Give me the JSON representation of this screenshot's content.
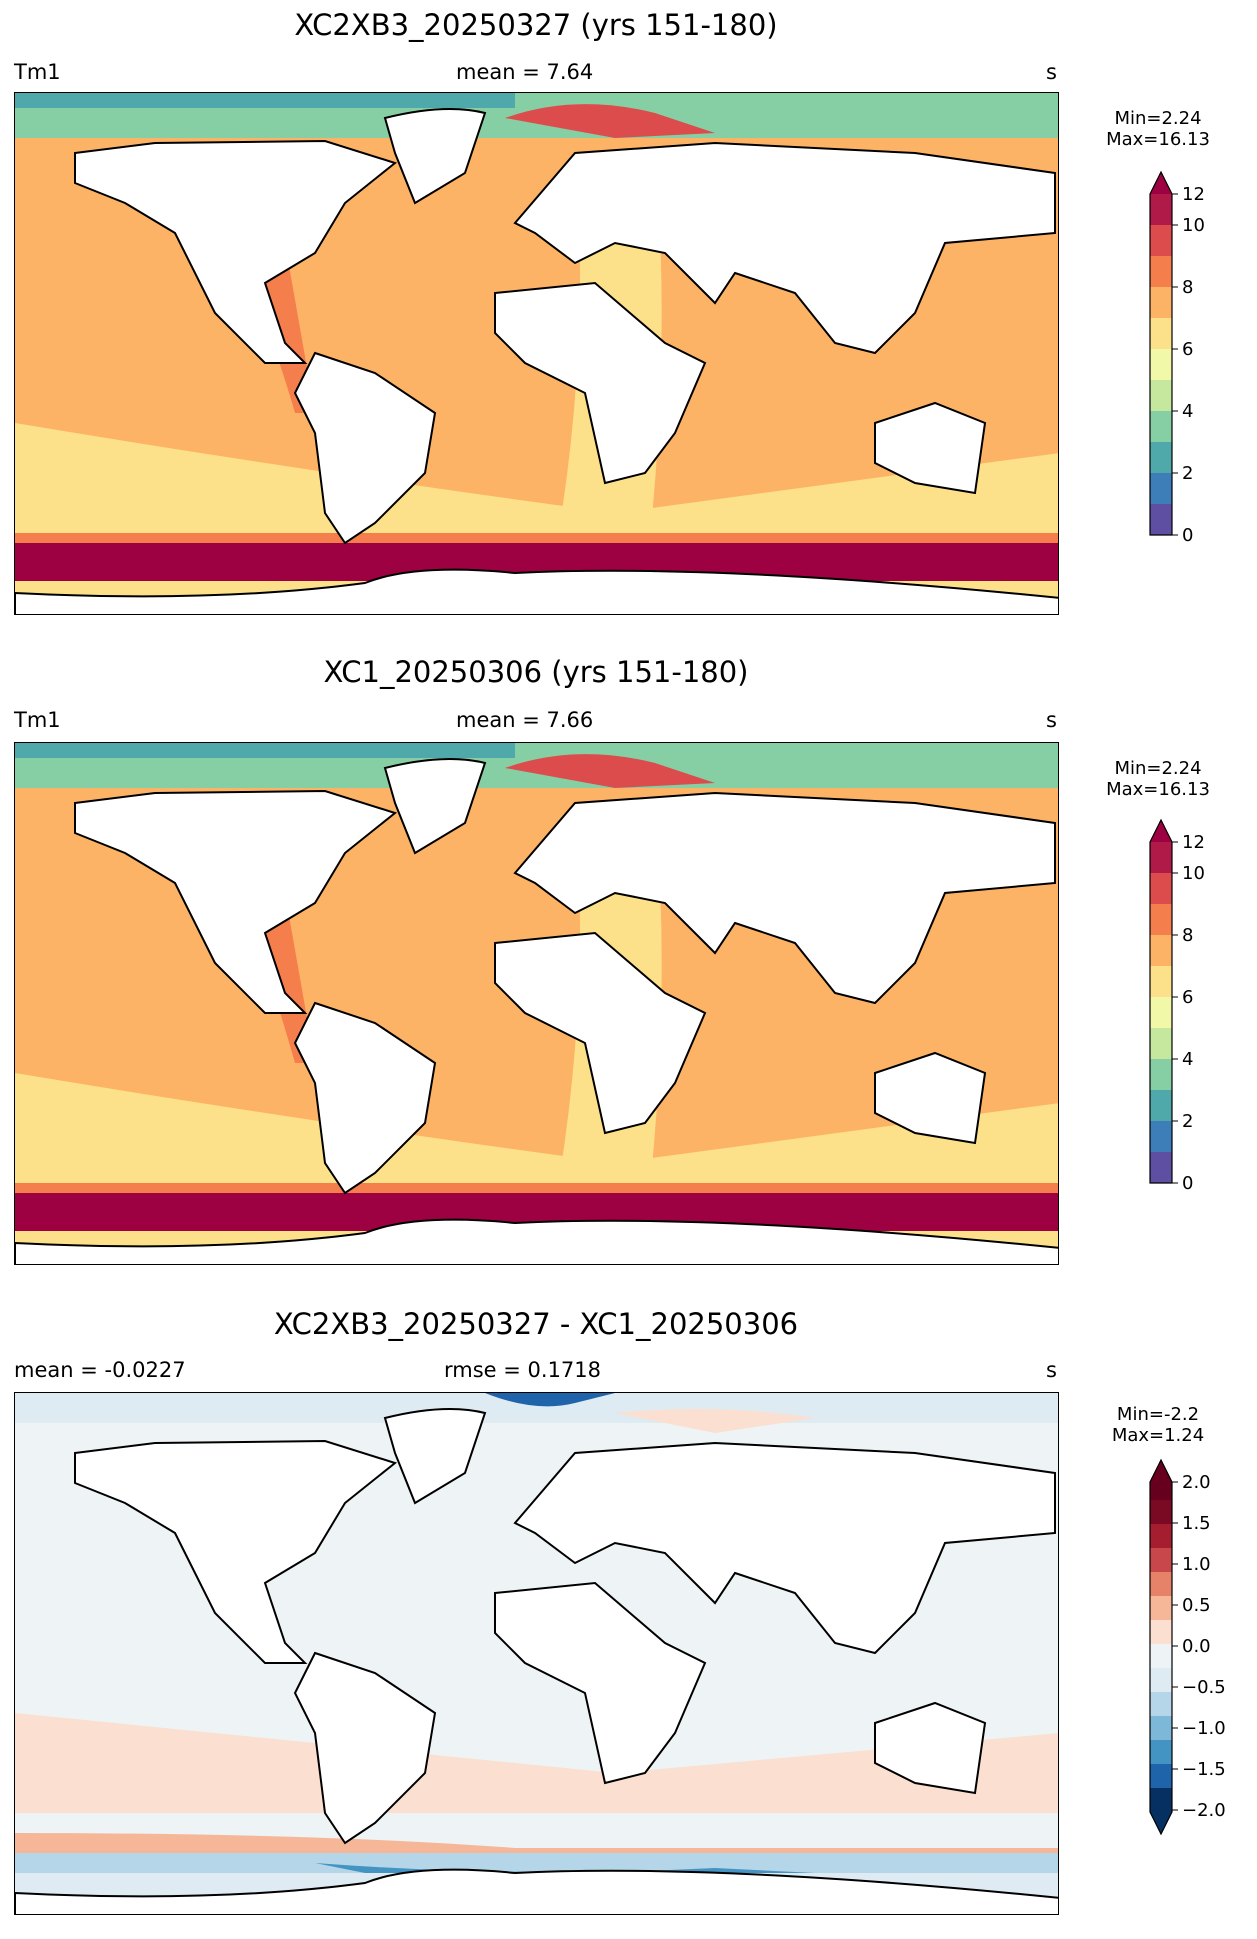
{
  "panels": [
    {
      "title": "XC2XB3_20250327 (yrs 151-180)",
      "left_label": "Tm1",
      "center_label": "mean = 7.64",
      "right_label": "s",
      "minmax": [
        "Min=2.24",
        "Max=16.13"
      ],
      "colorbar": {
        "ticks": [
          "0",
          "2",
          "4",
          "6",
          "8",
          "10",
          "12"
        ],
        "colors": [
          "#5e4fa2",
          "#3288bd",
          "#66c2a5",
          "#abdda4",
          "#e6f598",
          "#fee08b",
          "#fdae61",
          "#f46d43",
          "#d53e4f",
          "#9e0142",
          "#5e4fa2",
          "#3288bd"
        ],
        "top_arrow_color": "#9e0142"
      }
    },
    {
      "title": "XC1_20250306 (yrs 151-180)",
      "left_label": "Tm1",
      "center_label": "mean = 7.66",
      "right_label": "s",
      "minmax": [
        "Min=2.24",
        "Max=16.13"
      ],
      "colorbar": {
        "ticks": [
          "0",
          "2",
          "4",
          "6",
          "8",
          "10",
          "12"
        ],
        "top_arrow_color": "#9e0142"
      }
    },
    {
      "title": "XC2XB3_20250327 - XC1_20250306",
      "left_label": "mean = -0.0227",
      "center_label": "rmse = 0.1718",
      "right_label": "s",
      "minmax": [
        "Min=-2.2",
        "Max=1.24"
      ],
      "colorbar": {
        "ticks": [
          "2.0",
          "1.5",
          "1.0",
          "0.5",
          "0.0",
          "−0.5",
          "−1.0",
          "−1.5",
          "−2.0"
        ],
        "top_arrow_color": "#67001f",
        "bottom_arrow_color": "#053061"
      }
    }
  ],
  "colors": {
    "spectral": [
      "#5e4fa2",
      "#3d7db8",
      "#4fa8a9",
      "#86cfa4",
      "#c5e79e",
      "#f1f8a8",
      "#fde18a",
      "#fdb366",
      "#f57f4c",
      "#dd4c4c",
      "#b01a48",
      "#9e0142"
    ],
    "rdbu": [
      "#053061",
      "#1f64aa",
      "#4393c3",
      "#7eb8d9",
      "#b4d6e8",
      "#deebf3",
      "#eef3f6",
      "#fbdfd0",
      "#f6b799",
      "#e58268",
      "#c8474a",
      "#a51e2f",
      "#67001f"
    ]
  }
}
